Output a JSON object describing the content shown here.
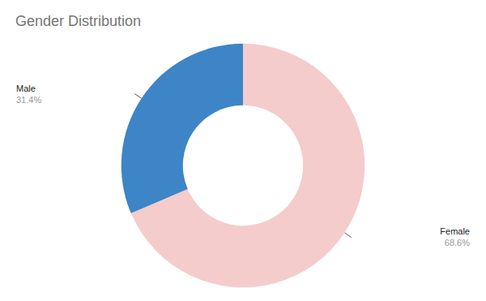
{
  "chart_data": {
    "type": "pie",
    "title": "Gender Distribution",
    "categories": [
      "Female",
      "Male"
    ],
    "values": [
      68.6,
      31.4
    ],
    "value_labels": [
      "68.6%",
      "31.4%"
    ],
    "colors": [
      "#f4cccc",
      "#3d85c6"
    ],
    "data_labels": true
  }
}
